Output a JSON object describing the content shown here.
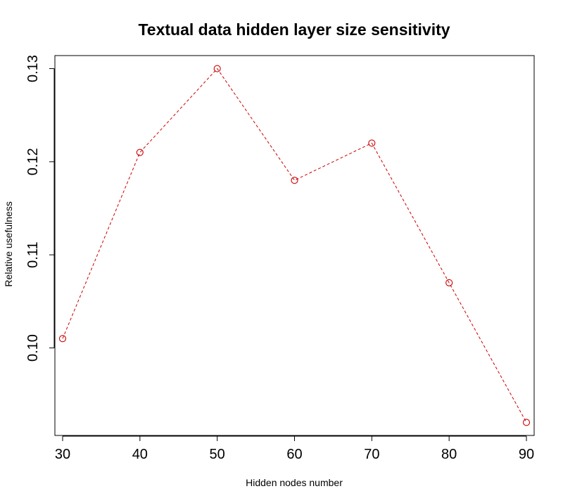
{
  "chart_data": {
    "type": "line",
    "title": "Textual data hidden layer size sensitivity",
    "xlabel": "Hidden nodes number",
    "ylabel": "Relative usefulness",
    "x": [
      30,
      40,
      50,
      60,
      70,
      80,
      90
    ],
    "series": [
      {
        "values": [
          0.101,
          0.121,
          0.13,
          0.118,
          0.122,
          0.107,
          0.092
        ],
        "color": "#cc0000",
        "line_style": "dashed",
        "marker": "open-circle"
      }
    ],
    "xticks": [
      "30",
      "40",
      "50",
      "60",
      "70",
      "80",
      "90"
    ],
    "yticks": [
      "0.10",
      "0.11",
      "0.12",
      "0.13"
    ],
    "ytick_values": [
      0.1,
      0.11,
      0.12,
      0.13
    ],
    "xlim": [
      29,
      91
    ],
    "ylim": [
      0.0906,
      0.1314
    ],
    "grid": false,
    "legend": false
  }
}
